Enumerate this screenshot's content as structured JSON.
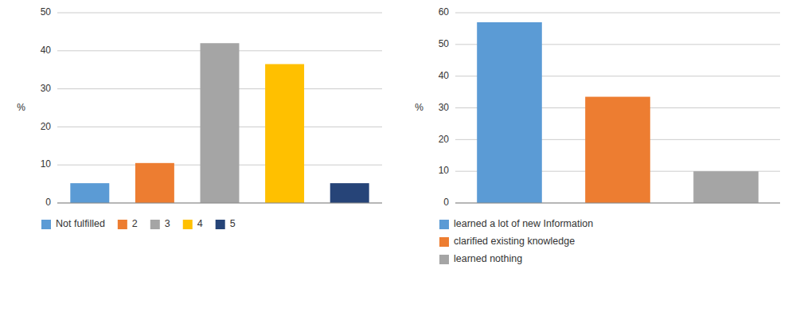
{
  "chart_data": [
    {
      "type": "bar",
      "categories": [
        "Not fulfilled",
        "2",
        "3",
        "4",
        "5"
      ],
      "values": [
        5.2,
        10.5,
        42.0,
        36.5,
        5.2
      ],
      "colors": [
        "#5B9BD5",
        "#ED7D31",
        "#A5A5A5",
        "#FFC000",
        "#264478"
      ],
      "ylabel": "%",
      "ylim": [
        0,
        50
      ],
      "yticks": [
        0,
        10,
        20,
        30,
        40,
        50
      ],
      "grid": true,
      "legend": "bottom",
      "tick_labels": "y"
    },
    {
      "type": "bar",
      "categories": [
        "learned a lot of new Information",
        "clarified existing knowledge",
        "learned nothing"
      ],
      "values": [
        57.0,
        33.5,
        10.0
      ],
      "colors": [
        "#5B9BD5",
        "#ED7D31",
        "#A5A5A5"
      ],
      "ylabel": "%",
      "ylim": [
        0,
        60
      ],
      "yticks": [
        0,
        10,
        20,
        30,
        40,
        50,
        60
      ],
      "grid": true,
      "legend": "bottom",
      "tick_labels": "y"
    }
  ]
}
